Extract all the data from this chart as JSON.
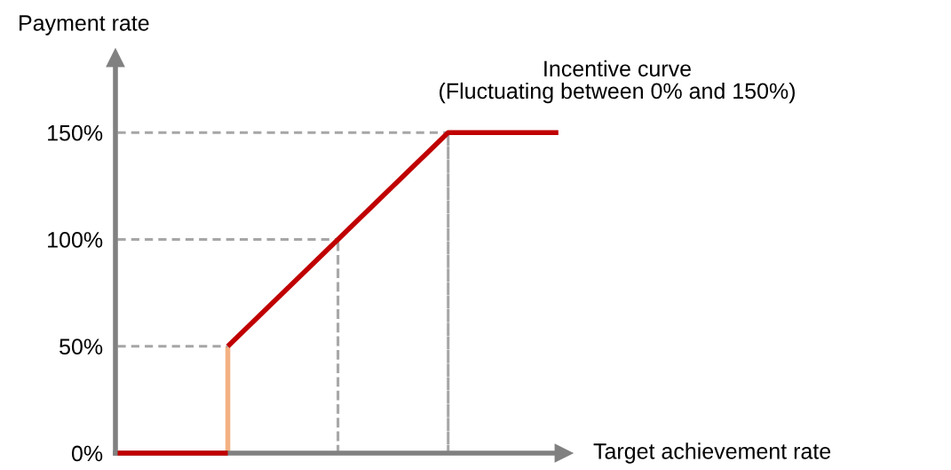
{
  "chart_data": {
    "type": "line",
    "title": "Incentive curve\n(Fluctuating between 0% and 150%)",
    "xlabel": "Target achievement rate",
    "ylabel": "Payment rate",
    "categories": [
      null,
      null,
      null,
      null,
      null
    ],
    "ylim": [
      0,
      185
    ],
    "yticks": [
      {
        "value": 0,
        "label": "0%"
      },
      {
        "value": 50,
        "label": "50%"
      },
      {
        "value": 100,
        "label": "100%"
      },
      {
        "value": 150,
        "label": "150%"
      }
    ],
    "tick_labels": "y",
    "grid": false,
    "legend": false,
    "marker": "none",
    "series": [
      {
        "color": "#a6a6a6",
        "line_style": "dashed",
        "values": [
          50,
          50,
          null,
          null,
          null
        ]
      },
      {
        "color": "#a6a6a6",
        "line_style": "dashed",
        "values": [
          100,
          100,
          100,
          null,
          null
        ]
      },
      {
        "color": "#a6a6a6",
        "line_style": "dashed",
        "values": [
          150,
          150,
          150,
          150,
          null
        ]
      },
      {
        "type": "bar",
        "color": "#a6a6a6",
        "line_style": "dashed",
        "values": [
          null,
          null,
          100,
          150,
          null
        ]
      },
      {
        "color": "#c00000",
        "line_style": "solid",
        "values": [
          0,
          0,
          null,
          null,
          null
        ]
      },
      {
        "type": "bar",
        "color": "#f4b183",
        "line_style": "solid",
        "values": [
          null,
          50,
          null,
          null,
          null
        ]
      },
      {
        "color": "#c00000",
        "line_style": "solid",
        "values": [
          null,
          50,
          100,
          150,
          150
        ]
      }
    ]
  }
}
